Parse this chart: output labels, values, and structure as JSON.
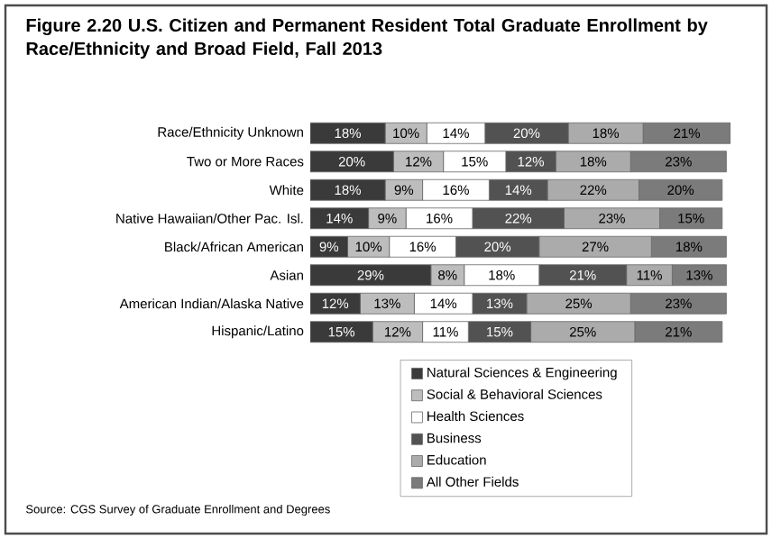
{
  "chart_data": {
    "type": "bar",
    "orientation": "horizontal",
    "stacked": true,
    "title": "Figure 2.20  U.S. Citizen and Permanent Resident Total Graduate Enrollment by Race/Ethnicity and Broad Field, Fall 2013",
    "categories": [
      "Race/Ethnicity Unknown",
      "Two or More Races",
      "White",
      "Native Hawaiian/Other Pac. Isl.",
      "Black/African American",
      "Asian",
      "American Indian/Alaska Native",
      "Hispanic/Latino"
    ],
    "series": [
      {
        "name": "Natural Sciences & Engineering",
        "color": "#3a3a3a",
        "values": [
          18,
          20,
          18,
          14,
          9,
          29,
          12,
          15
        ],
        "value_labels": [
          "18%",
          "20%",
          "18%",
          "14%",
          "9%",
          "29%",
          "12%",
          "15%"
        ]
      },
      {
        "name": "Social & Behavioral Sciences",
        "color": "#bdbdbd",
        "values": [
          10,
          12,
          9,
          9,
          10,
          8,
          13,
          12
        ],
        "value_labels": [
          "10%",
          "12%",
          "9%",
          "9%",
          "10%",
          "8%",
          "13%",
          "12%"
        ]
      },
      {
        "name": "Health Sciences",
        "color": "#ffffff",
        "values": [
          14,
          15,
          16,
          16,
          16,
          18,
          14,
          11
        ],
        "value_labels": [
          "14%",
          "15%",
          "16%",
          "16%",
          "16%",
          "18%",
          "14%",
          "11%"
        ]
      },
      {
        "name": "Business",
        "color": "#525252",
        "values": [
          20,
          12,
          14,
          22,
          20,
          21,
          13,
          15
        ],
        "value_labels": [
          "20%",
          "12%",
          "14%",
          "22%",
          "20%",
          "21%",
          "13%",
          "15%"
        ]
      },
      {
        "name": "Education",
        "color": "#ababab",
        "values": [
          18,
          18,
          22,
          23,
          27,
          11,
          25,
          25
        ],
        "value_labels": [
          "18%",
          "18%",
          "22%",
          "23%",
          "27%",
          "11%",
          "25%",
          "25%"
        ]
      },
      {
        "name": "All Other Fields",
        "color": "#7b7b7b",
        "values": [
          21,
          23,
          20,
          15,
          18,
          13,
          23,
          21
        ],
        "value_labels": [
          "21%",
          "23%",
          "20%",
          "15%",
          "18%",
          "13%",
          "23%",
          "21%"
        ]
      }
    ],
    "xlim": [
      0,
      101
    ],
    "tick_labels": "y",
    "legend": "bottom",
    "annotations": [
      "Source: CGS Survey of Graduate Enrollment and Degrees"
    ]
  }
}
